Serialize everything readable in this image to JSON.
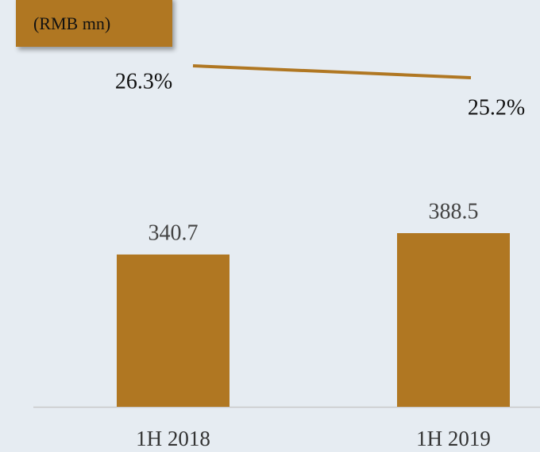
{
  "chart_data": {
    "type": "bar",
    "unit_label": "(RMB mn)",
    "categories": [
      "1H 2018",
      "1H 2019"
    ],
    "values": [
      340.7,
      388.5
    ],
    "color": "#b07722",
    "line": {
      "values": [
        26.3,
        25.2
      ],
      "value_labels": [
        "26.3%",
        "25.2%"
      ],
      "color": "#b07722"
    }
  }
}
